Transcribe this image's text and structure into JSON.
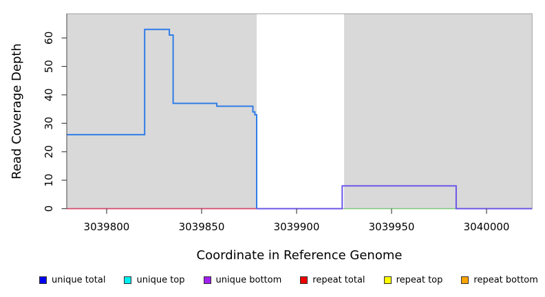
{
  "chart_data": {
    "type": "line",
    "subtype": "step-coverage-plot",
    "title": "",
    "xlabel": "Coordinate in Reference Genome",
    "ylabel": "Read Coverage Depth",
    "xlim": [
      3039779,
      3040024
    ],
    "ylim": [
      0,
      68.5
    ],
    "xticks": [
      3039800,
      3039850,
      3039900,
      3039950,
      3040000
    ],
    "yticks": [
      0,
      10,
      20,
      30,
      40,
      50,
      60
    ],
    "grid": false,
    "frame_color": "#9e9e9e",
    "axis_color": "#454545",
    "shaded_regions": [
      {
        "name": "left-gray-region",
        "x0": 3039779,
        "x1": 3039879,
        "fill": "#d9d9d9"
      },
      {
        "name": "white-gap-region",
        "x0": 3039879,
        "x1": 3039925,
        "fill": "#ffffff"
      },
      {
        "name": "right-gray-region",
        "x0": 3039925,
        "x1": 3040024,
        "fill": "#d9d9d9"
      }
    ],
    "series": [
      {
        "name": "repeat total (zero line)",
        "color": "#d2496b",
        "width": 1.8,
        "points": [
          [
            3039779,
            0
          ],
          [
            3039879,
            0
          ]
        ]
      },
      {
        "name": "green zero segment (unlabeled)",
        "color": "#7cc87c",
        "width": 1.6,
        "points": [
          [
            3039925,
            0
          ],
          [
            3039984,
            0
          ]
        ]
      },
      {
        "name": "unique bottom",
        "color": "#6a55e6",
        "width": 2,
        "points": [
          [
            3039879,
            0
          ],
          [
            3039924,
            0
          ],
          [
            3039924,
            8
          ],
          [
            3039984,
            8
          ],
          [
            3039984,
            0
          ],
          [
            3040024,
            0
          ]
        ]
      },
      {
        "name": "unique total",
        "color": "#2e7ce8",
        "width": 2,
        "points": [
          [
            3039779,
            26
          ],
          [
            3039820,
            26
          ],
          [
            3039820,
            63
          ],
          [
            3039833,
            63
          ],
          [
            3039833,
            61
          ],
          [
            3039835,
            61
          ],
          [
            3039835,
            37
          ],
          [
            3039858,
            37
          ],
          [
            3039858,
            36
          ],
          [
            3039877,
            36
          ],
          [
            3039877,
            34
          ],
          [
            3039878,
            34
          ],
          [
            3039878,
            33
          ],
          [
            3039879,
            33
          ],
          [
            3039879,
            0
          ]
        ]
      }
    ],
    "legend": {
      "position": "bottom",
      "items": [
        {
          "label": "unique total",
          "color": "#0000ee"
        },
        {
          "label": "unique top",
          "color": "#00eeee"
        },
        {
          "label": "unique bottom",
          "color": "#a020f0"
        },
        {
          "label": "repeat total",
          "color": "#ee0000"
        },
        {
          "label": "repeat top",
          "color": "#ffff00"
        },
        {
          "label": "repeat bottom",
          "color": "#ffa500"
        }
      ]
    }
  }
}
